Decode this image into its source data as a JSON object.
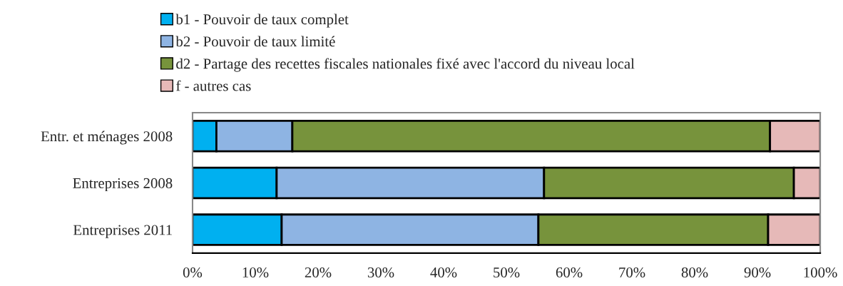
{
  "chart_data": {
    "type": "bar",
    "orientation": "horizontal",
    "stacked": true,
    "categories": [
      "Entr. et ménages 2008",
      "Entreprises 2008",
      "Entreprises 2011"
    ],
    "series": [
      {
        "name": "b1 - Pouvoir de taux complet",
        "color": "#00b0f0",
        "values": [
          3.8,
          13.4,
          14.2
        ]
      },
      {
        "name": "b2 - Pouvoir de taux limité",
        "color": "#8eb4e3",
        "values": [
          12.1,
          42.6,
          40.9
        ]
      },
      {
        "name": "d2 - Partage des recettes fiscales nationales fixé avec l'accord du niveau local",
        "color": "#77933c",
        "values": [
          76.1,
          39.8,
          36.6
        ]
      },
      {
        "name": "f - autres cas",
        "color": "#e6b9b8",
        "values": [
          8.0,
          4.2,
          8.3
        ]
      }
    ],
    "xlim": [
      0,
      100
    ],
    "xticks": [
      {
        "value": 0,
        "label": "0%"
      },
      {
        "value": 10,
        "label": "10%"
      },
      {
        "value": 20,
        "label": "20%"
      },
      {
        "value": 30,
        "label": "30%"
      },
      {
        "value": 40,
        "label": "40%"
      },
      {
        "value": 50,
        "label": "50%"
      },
      {
        "value": 60,
        "label": "60%"
      },
      {
        "value": 70,
        "label": "70%"
      },
      {
        "value": 80,
        "label": "80%"
      },
      {
        "value": 90,
        "label": "90%"
      },
      {
        "value": 100,
        "label": "100%"
      }
    ],
    "grid": false,
    "legend": "top"
  }
}
